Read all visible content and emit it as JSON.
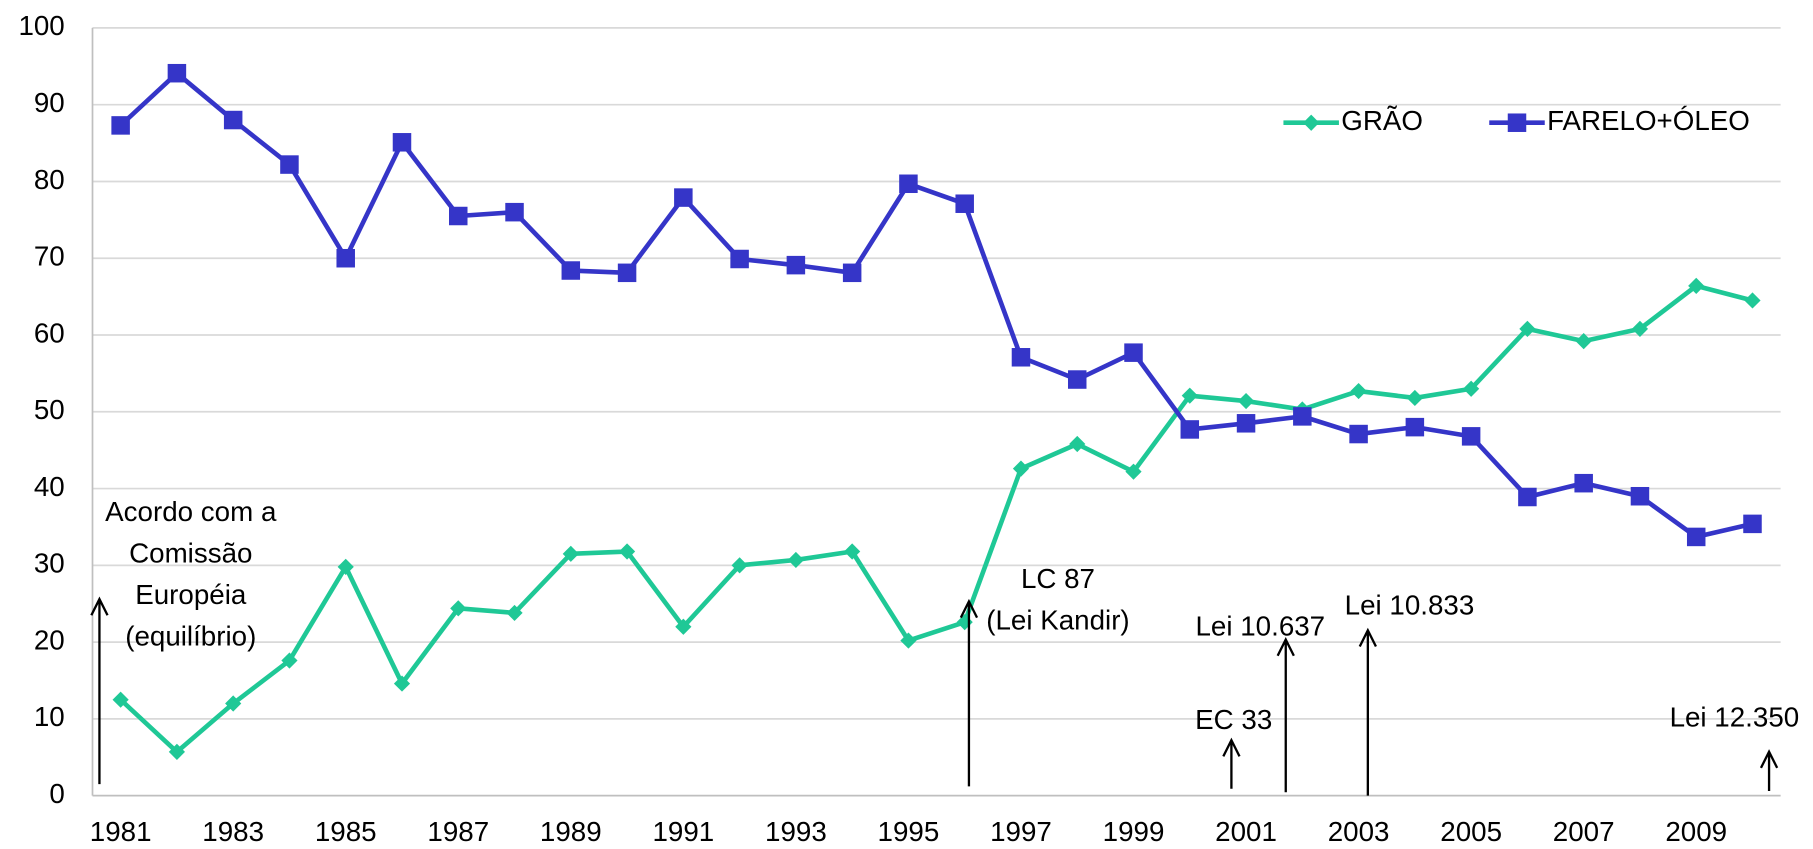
{
  "chart_data": {
    "type": "line",
    "x": [
      1981,
      1982,
      1983,
      1984,
      1985,
      1986,
      1987,
      1988,
      1989,
      1990,
      1991,
      1992,
      1993,
      1994,
      1995,
      1996,
      1997,
      1998,
      1999,
      2000,
      2001,
      2002,
      2003,
      2004,
      2005,
      2006,
      2007,
      2008,
      2009,
      2010
    ],
    "series": [
      {
        "name": "GRÃO",
        "color": "#1fc896",
        "marker": "diamond",
        "values": [
          12.5,
          5.7,
          12,
          17.6,
          29.8,
          14.6,
          24.4,
          23.8,
          31.5,
          31.8,
          22,
          30,
          30.7,
          31.8,
          20.2,
          22.6,
          42.6,
          45.8,
          42.2,
          52.1,
          51.4,
          50.3,
          52.7,
          51.8,
          53,
          60.8,
          59.2,
          60.8,
          66.4,
          64.5
        ]
      },
      {
        "name": "FARELO+ÓLEO",
        "color": "#3535c8",
        "marker": "square",
        "values": [
          87.3,
          94.1,
          88,
          82.2,
          70,
          85.1,
          75.5,
          76,
          68.4,
          68.1,
          77.9,
          69.9,
          69.1,
          68.1,
          79.7,
          77.1,
          57.1,
          54.2,
          57.7,
          47.7,
          48.5,
          49.4,
          47.1,
          48,
          46.8,
          38.9,
          40.7,
          39,
          33.7,
          35.4
        ]
      }
    ],
    "xlim": [
      1980.5,
      2010.5
    ],
    "xticks": [
      1981,
      1983,
      1985,
      1987,
      1989,
      1991,
      1993,
      1995,
      1997,
      1999,
      2001,
      2003,
      2005,
      2007,
      2009
    ],
    "ylim": [
      0,
      100
    ],
    "yticks": [
      0,
      10,
      20,
      30,
      40,
      50,
      60,
      70,
      80,
      90,
      100
    ],
    "grid": true,
    "legend": "top-right",
    "annotations": [
      {
        "lines": [
          "Acordo com a",
          "Comissão",
          "Européia",
          "(equilíbrio)"
        ]
      },
      {
        "lines": [
          "LC 87",
          "(Lei Kandir)"
        ]
      },
      {
        "lines": [
          "EC 33"
        ]
      },
      {
        "lines": [
          "Lei 10.637"
        ]
      },
      {
        "lines": [
          "Lei 10.833"
        ]
      },
      {
        "lines": [
          "Lei 12.350"
        ]
      }
    ]
  }
}
